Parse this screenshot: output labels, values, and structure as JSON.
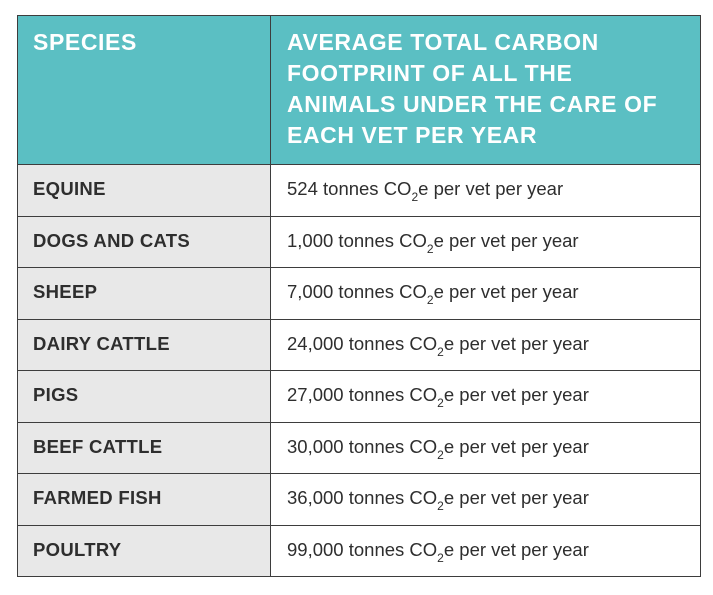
{
  "header": {
    "col1": "SPECIES",
    "col2": "AVERAGE TOTAL CARBON FOOTPRINT OF ALL THE ANIMALS UNDER THE CARE OF EACH VET PER YEAR"
  },
  "unit": {
    "pre": " tonnes CO",
    "sub": "2",
    "post": "e per vet per year"
  },
  "rows": [
    {
      "species": "EQUINE",
      "value": "524"
    },
    {
      "species": "DOGS AND CATS",
      "value": "1,000"
    },
    {
      "species": "SHEEP",
      "value": "7,000"
    },
    {
      "species": "DAIRY CATTLE",
      "value": "24,000"
    },
    {
      "species": "PIGS",
      "value": "27,000"
    },
    {
      "species": "BEEF CATTLE",
      "value": "30,000"
    },
    {
      "species": "FARMED FISH",
      "value": "36,000"
    },
    {
      "species": "POULTRY",
      "value": "99,000"
    }
  ],
  "colors": {
    "header_bg": "#5bbfc3",
    "header_text": "#ffffff",
    "species_cell_bg": "#e8e8e8",
    "value_cell_bg": "#ffffff",
    "border": "#3d3d3d"
  }
}
